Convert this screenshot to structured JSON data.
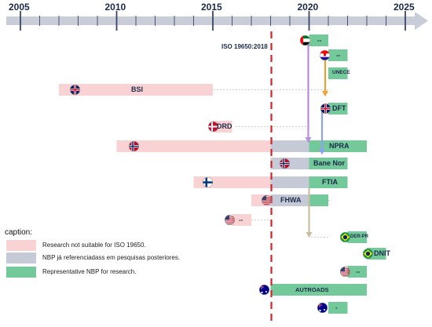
{
  "axis": {
    "years": [
      "2005",
      "2010",
      "2015",
      "2020",
      "2025"
    ],
    "start_year": 2005,
    "end_year": 2025
  },
  "iso_marker": {
    "label": "ISO 19650:2018",
    "year": 2018
  },
  "rows": [
    {
      "id": "uae",
      "flag": "uae-flag",
      "label": "--",
      "segments": [
        {
          "from": 2020,
          "to": 2021,
          "kind": "representative"
        }
      ]
    },
    {
      "id": "croatia",
      "flag": "croatia-flag",
      "label": "--",
      "segments": [
        {
          "from": 2021,
          "to": 2022,
          "kind": "representative"
        }
      ]
    },
    {
      "id": "unece",
      "flag": "",
      "label": "UNECE",
      "segments": [
        {
          "from": 2021,
          "to": 2022,
          "kind": "representative"
        }
      ]
    },
    {
      "id": "bsi",
      "flag": "uk-flag",
      "label": "BSI",
      "segments": [
        {
          "from": 2007,
          "to": 2015,
          "kind": "not-suitable"
        }
      ]
    },
    {
      "id": "dft",
      "flag": "uk-flag",
      "label": "DFT",
      "segments": [
        {
          "from": 2021,
          "to": 2022,
          "kind": "representative"
        }
      ]
    },
    {
      "id": "drd",
      "flag": "denmark-flag",
      "label": "DRD",
      "segments": [
        {
          "from": 2015,
          "to": 2016,
          "kind": "not-suitable"
        }
      ]
    },
    {
      "id": "npra",
      "flag": "norway-flag",
      "label": "NPRA",
      "segments": [
        {
          "from": 2010,
          "to": 2018,
          "kind": "not-suitable"
        },
        {
          "from": 2018,
          "to": 2020,
          "kind": "referenced"
        },
        {
          "from": 2020,
          "to": 2023,
          "kind": "representative"
        }
      ]
    },
    {
      "id": "banenor",
      "flag": "norway-flag",
      "label": "Bane Nor",
      "segments": [
        {
          "from": 2018,
          "to": 2020,
          "kind": "referenced"
        },
        {
          "from": 2020,
          "to": 2022,
          "kind": "representative"
        }
      ]
    },
    {
      "id": "ftia",
      "flag": "finland-flag",
      "label": "FTIA",
      "segments": [
        {
          "from": 2014,
          "to": 2018,
          "kind": "not-suitable"
        },
        {
          "from": 2018,
          "to": 2020,
          "kind": "referenced"
        },
        {
          "from": 2020,
          "to": 2022,
          "kind": "representative"
        }
      ]
    },
    {
      "id": "fhwa",
      "flag": "usa-flag",
      "label": "FHWA",
      "segments": [
        {
          "from": 2017,
          "to": 2018,
          "kind": "not-suitable"
        },
        {
          "from": 2018,
          "to": 2020,
          "kind": "referenced"
        },
        {
          "from": 2020,
          "to": 2021,
          "kind": "representative"
        }
      ]
    },
    {
      "id": "usa2",
      "flag": "usa-flag",
      "label": "--",
      "segments": [
        {
          "from": 2016,
          "to": 2017,
          "kind": "not-suitable"
        }
      ]
    },
    {
      "id": "derpr",
      "flag": "brazil-flag",
      "label": "DER-PR",
      "segments": [
        {
          "from": 2022,
          "to": 2023,
          "kind": "representative"
        }
      ]
    },
    {
      "id": "dnit",
      "flag": "brazil-flag",
      "label": "DNIT",
      "segments": [
        {
          "from": 2023,
          "to": 2024,
          "kind": "representative"
        }
      ]
    },
    {
      "id": "usa3",
      "flag": "usa-flag",
      "label": "--",
      "segments": [
        {
          "from": 2022,
          "to": 2023,
          "kind": "representative"
        }
      ]
    },
    {
      "id": "autroads",
      "flag": "australia-flag",
      "label": "AUTROADS",
      "segments": [
        {
          "from": 2018,
          "to": 2023,
          "kind": "representative"
        }
      ]
    },
    {
      "id": "aus2",
      "flag": "australia-flag",
      "label": "-",
      "segments": [
        {
          "from": 2021,
          "to": 2022,
          "kind": "representative"
        }
      ]
    }
  ],
  "legend": {
    "title": "caption:",
    "items": [
      {
        "kind": "not-suitable",
        "label": "Research not suitable for ISO 19650."
      },
      {
        "kind": "referenced",
        "label": "NBP já referenciadass em pesquisas posteriores."
      },
      {
        "kind": "representative",
        "label": "Representative NBP for research."
      }
    ]
  },
  "colors": {
    "not-suitable": "#f9d3d3",
    "referenced": "#c6cad6",
    "representative": "#74c99a",
    "axis": "#c9cdd8",
    "iso_line": "#d0252a",
    "purple_arrow": "#b98bdc",
    "orange_arrow": "#f0a131",
    "blue_arrow": "#8f9ef0",
    "khaki_arrow": "#c8bda0"
  }
}
